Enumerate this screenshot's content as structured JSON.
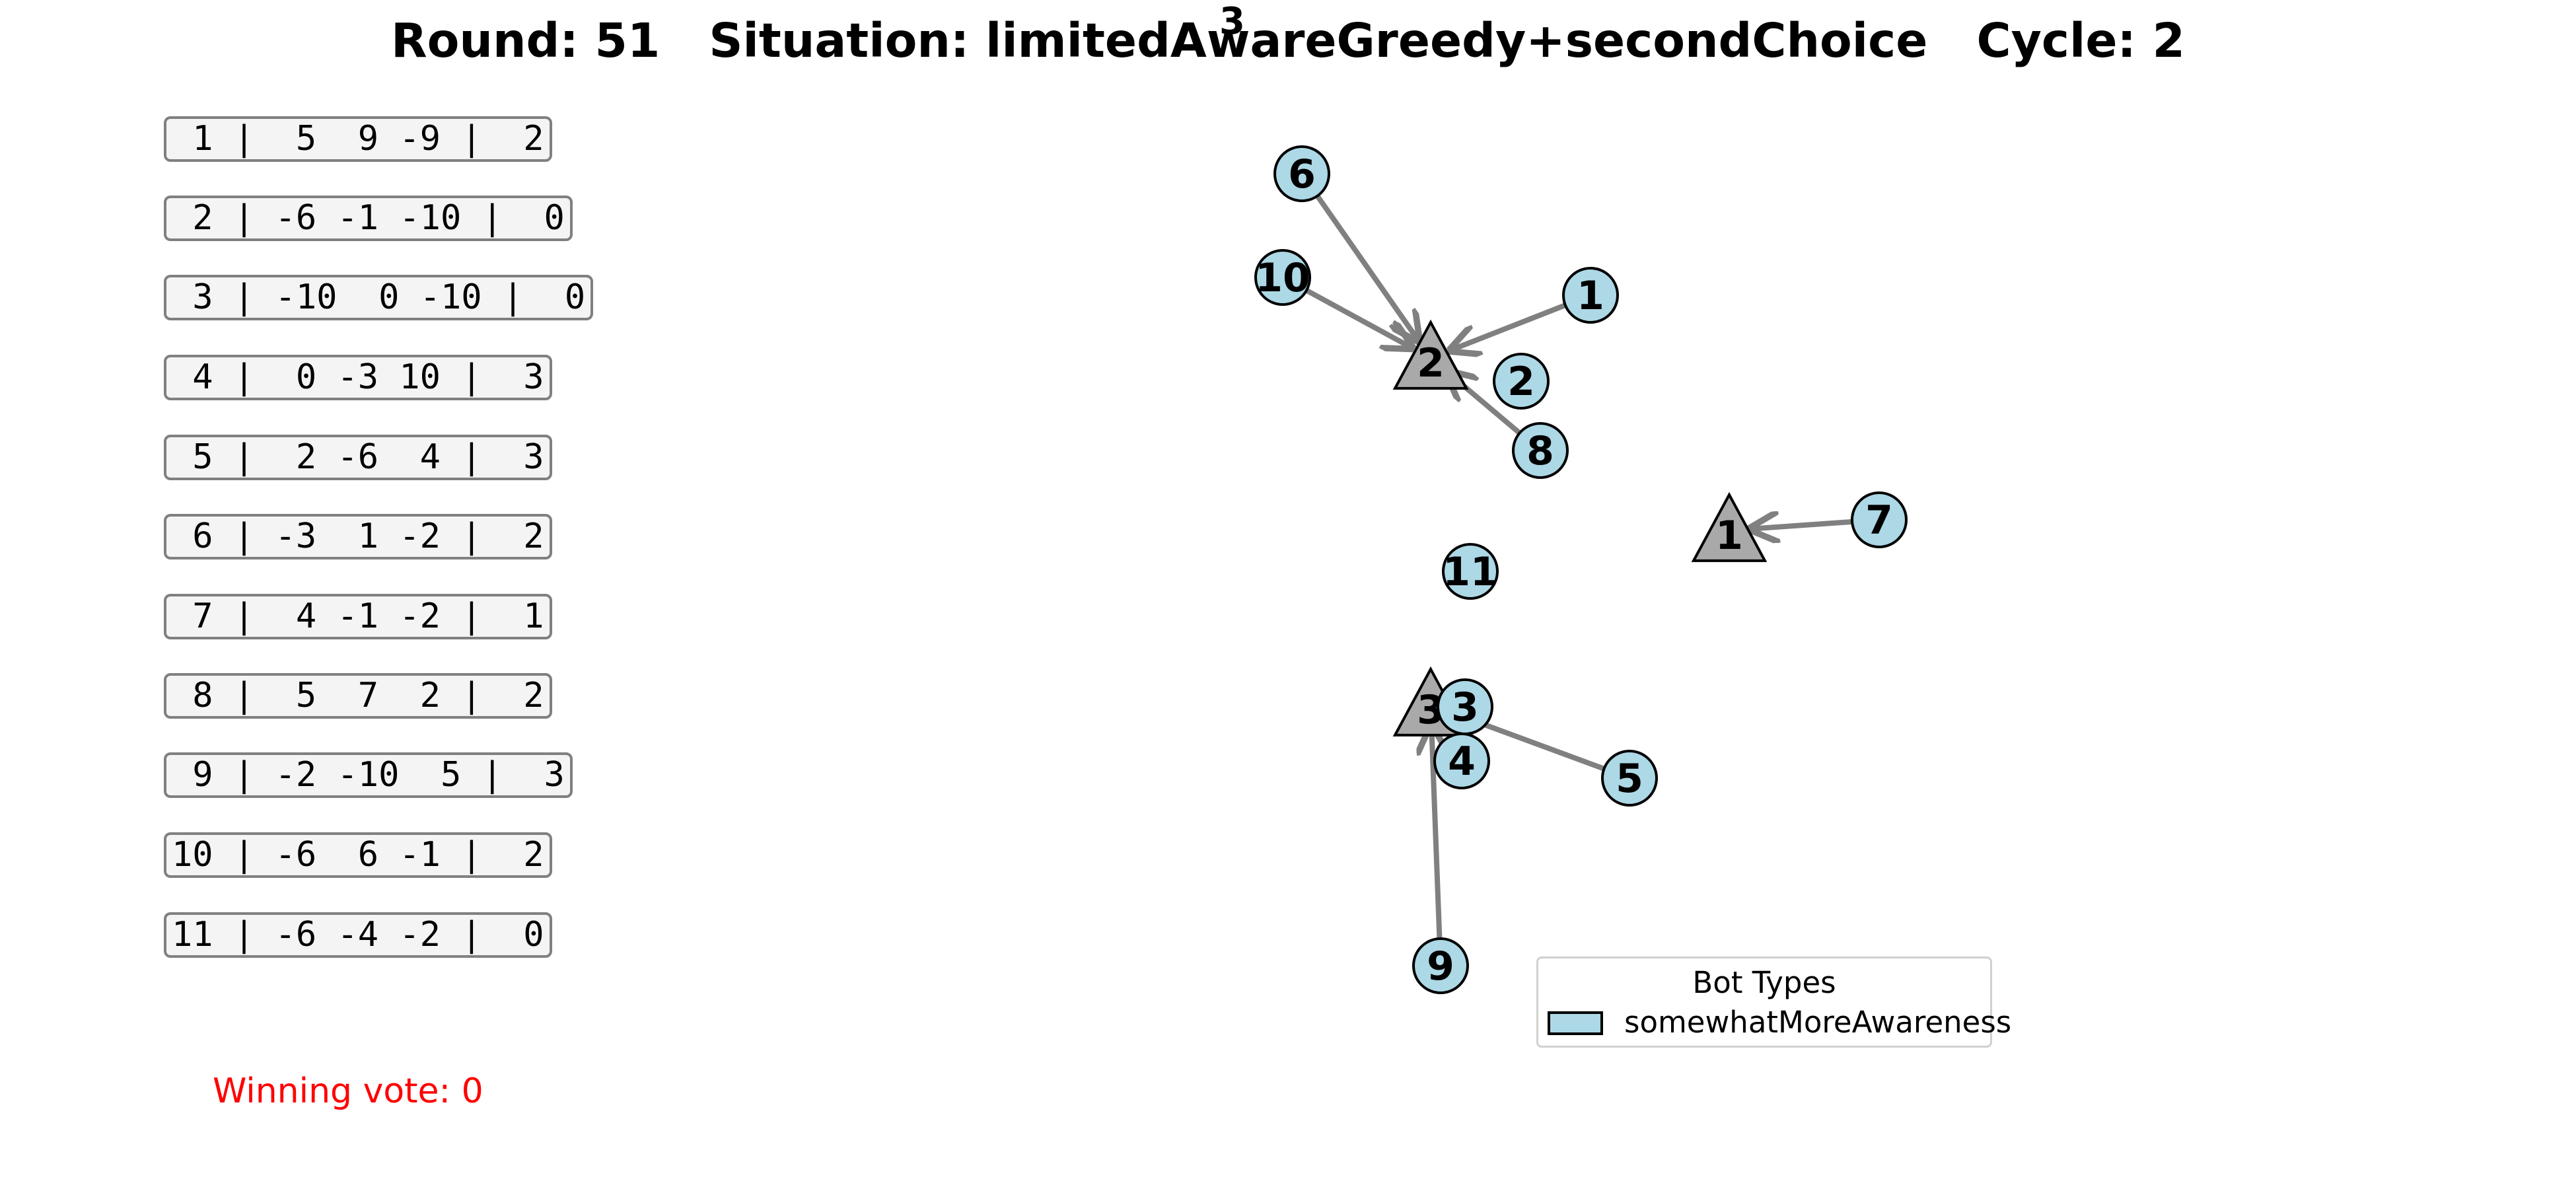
{
  "title": "Round: 51   Situation: limitedAwareGreedy+secondChoice   Cycle: 2",
  "title_superscript": "3",
  "bot_rows": [
    " 1 |  5  9 -9 |  2",
    " 2 | -6 -1 -10 |  0",
    " 3 | -10  0 -10 |  0",
    " 4 |  0 -3 10 |  3",
    " 5 |  2 -6  4 |  3",
    " 6 | -3  1 -2 |  2",
    " 7 |  4 -1 -2 |  1",
    " 8 |  5  7  2 |  2",
    " 9 | -2 -10  5 |  3",
    "10 | -6  6 -1 |  2",
    "11 | -6 -4 -2 |  0"
  ],
  "winning_vote": "Winning vote: 0",
  "legend": {
    "title": "Bot Types",
    "label": "somewhatMoreAwareness"
  },
  "colors": {
    "bot_fill": "#add8e6",
    "candidate_fill": "#a9a9a9",
    "edge": "#808080",
    "winning_text": "#ff0000"
  },
  "candidates": [
    "1",
    "2",
    "3"
  ],
  "bots": [
    "1",
    "2",
    "3",
    "4",
    "5",
    "6",
    "7",
    "8",
    "9",
    "10",
    "11"
  ],
  "edges": [
    {
      "from": "6",
      "to": "2"
    },
    {
      "from": "10",
      "to": "2"
    },
    {
      "from": "1",
      "to": "2"
    },
    {
      "from": "8",
      "to": "2"
    },
    {
      "from": "7",
      "to": "1"
    },
    {
      "from": "5",
      "to": "3"
    },
    {
      "from": "9",
      "to": "3"
    }
  ]
}
